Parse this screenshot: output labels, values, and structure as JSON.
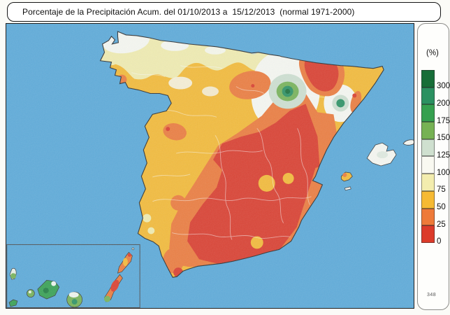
{
  "title": "Porcentaje de la Precipitación Acum. del 01/10/2013 a  15/12/2013  (normal 1971-2000)",
  "legend": {
    "unit": "(%)",
    "entries": [
      {
        "label": "300",
        "color": "#176e38"
      },
      {
        "label": "200",
        "color": "#2b9161"
      },
      {
        "label": "175",
        "color": "#35a04f"
      },
      {
        "label": "150",
        "color": "#76b254"
      },
      {
        "label": "125",
        "color": "#cfe0cf"
      },
      {
        "label": "100",
        "color": "#f9f9f1"
      },
      {
        "label": "75",
        "color": "#f3edae"
      },
      {
        "label": "50",
        "color": "#f6ba33"
      },
      {
        "label": "25",
        "color": "#ee7a39"
      },
      {
        "label": "0",
        "color": "#dc3b2a"
      }
    ],
    "footnote": "348"
  },
  "palette": {
    "sea": "#5aa9d8",
    "p300": "#176e38",
    "p200": "#2b9161",
    "p175": "#35a04f",
    "p150": "#76b254",
    "p125": "#cfe0cf",
    "p100": "#f9f9f1",
    "p75": "#f3edae",
    "p50": "#f6ba33",
    "p25": "#ee7a39",
    "p0": "#dc3b2a",
    "coast": "#2b2b2b"
  }
}
